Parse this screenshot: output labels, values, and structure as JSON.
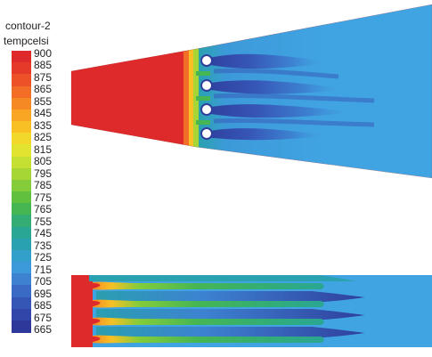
{
  "legend": {
    "title": "contour-2",
    "variable": "tempcelsi",
    "ticks": [
      "900",
      "885",
      "875",
      "865",
      "855",
      "845",
      "835",
      "825",
      "815",
      "805",
      "795",
      "785",
      "775",
      "765",
      "755",
      "745",
      "735",
      "725",
      "715",
      "705",
      "695",
      "685",
      "675",
      "665"
    ],
    "band_colors": [
      "#de2a2a",
      "#e53a2a",
      "#ec5128",
      "#f26e26",
      "#f58a24",
      "#f8a623",
      "#f8c024",
      "#f2d82a",
      "#e0e330",
      "#c5df33",
      "#a6d636",
      "#84cc3a",
      "#62c03f",
      "#46b653",
      "#33ad74",
      "#2aa694",
      "#2aa1b1",
      "#33a0cc",
      "#3d9ada",
      "#3d82d1",
      "#3a6bc4",
      "#3656b6",
      "#3245a8",
      "#2e389b"
    ]
  },
  "colors": {
    "hot": "#de2a2a",
    "mid_green": "#6cc23c",
    "cool_blue": "#3d9ada",
    "deep_blue": "#2f3f9d",
    "ambient": "#3fa3e0"
  }
}
